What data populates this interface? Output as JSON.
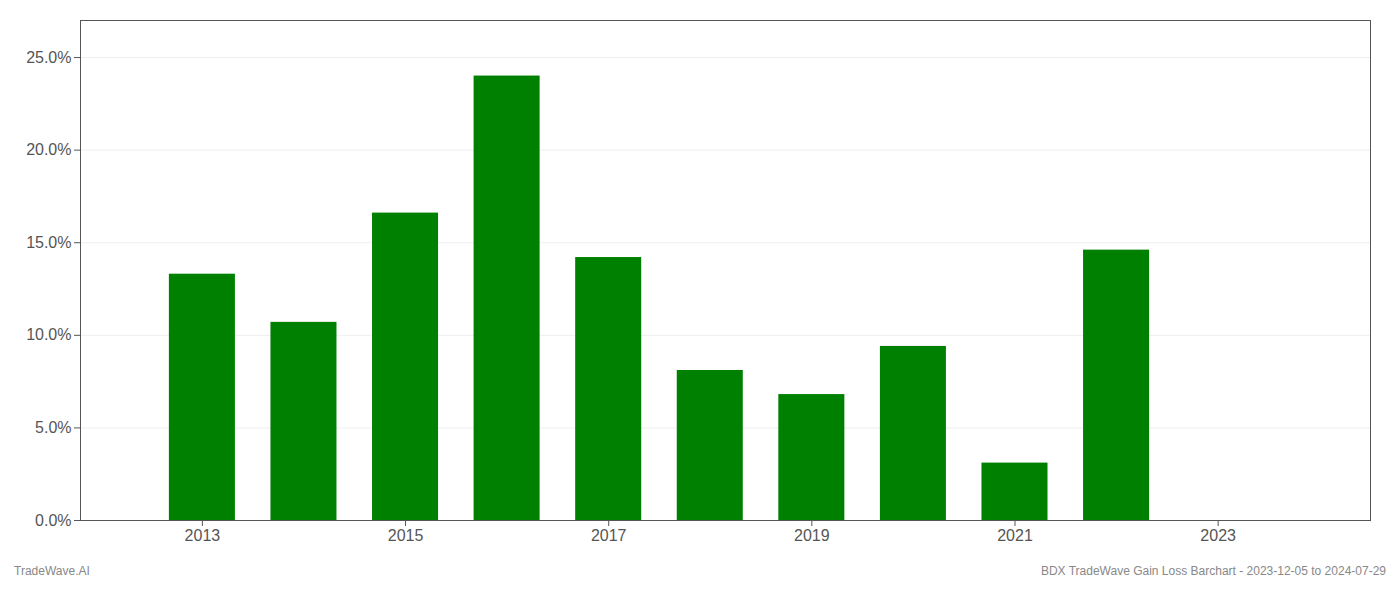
{
  "chart_data": {
    "type": "bar",
    "x": [
      2013,
      2014,
      2015,
      2016,
      2017,
      2018,
      2019,
      2020,
      2021,
      2022
    ],
    "values": [
      0.133,
      0.107,
      0.166,
      0.24,
      0.142,
      0.081,
      0.068,
      0.094,
      0.031,
      0.146
    ],
    "color": "#008000",
    "xlim": [
      2011.8,
      2024.5
    ],
    "xticks": [
      2013,
      2015,
      2017,
      2019,
      2021,
      2023
    ],
    "ylim": [
      0,
      0.27
    ],
    "yticks": [
      {
        "value": 0.0,
        "label": "0.0%"
      },
      {
        "value": 0.05,
        "label": "5.0%"
      },
      {
        "value": 0.1,
        "label": "10.0%"
      },
      {
        "value": 0.15,
        "label": "15.0%"
      },
      {
        "value": 0.2,
        "label": "20.0%"
      },
      {
        "value": 0.25,
        "label": "25.0%"
      }
    ],
    "grid": true,
    "annotations": [
      "TradeWave.AI",
      "BDX TradeWave Gain Loss Barchart - 2023-12-05 to 2024-07-29"
    ]
  }
}
